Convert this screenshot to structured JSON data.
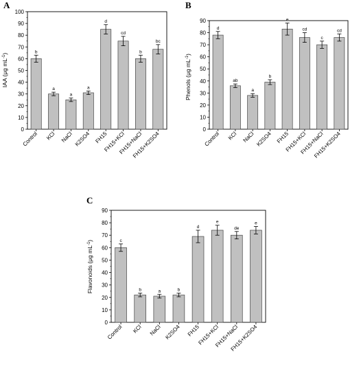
{
  "chart_data": [
    {
      "type": "bar",
      "panel": "A",
      "ylabel": "IAA (μg mL",
      "ylabel_sup": "-1",
      "ylabel_end": ")",
      "ylim": [
        0,
        100
      ],
      "yticks": [
        0,
        10,
        20,
        30,
        40,
        50,
        60,
        70,
        80,
        90,
        100
      ],
      "categories": [
        "Control",
        "KCl",
        "NaCl",
        "K2SO4",
        "FH15",
        "FH15+KCl",
        "FH15+NaCl",
        "FH15+K2SO4"
      ],
      "values": [
        60,
        30,
        25,
        31,
        85,
        75,
        60,
        68
      ],
      "errors": [
        3,
        1.5,
        1.5,
        1.5,
        4,
        4,
        3,
        4
      ],
      "letters": [
        "b",
        "a",
        "a",
        "a",
        "d",
        "cd",
        "b",
        "bc"
      ],
      "bar_color": "#c0c0c0"
    },
    {
      "type": "bar",
      "panel": "B",
      "ylabel": "Phenols (μg mL",
      "ylabel_sup": "-1",
      "ylabel_end": ")",
      "ylim": [
        0,
        90
      ],
      "yticks": [
        0,
        10,
        20,
        30,
        40,
        50,
        60,
        70,
        80,
        90
      ],
      "categories": [
        "Control",
        "KCl",
        "NaCl",
        "K2SO4",
        "FH15",
        "FH15+KCl",
        "FH15+NaCl",
        "FH15+K2SO4"
      ],
      "values": [
        78,
        36,
        28,
        39,
        83,
        76,
        70,
        76
      ],
      "errors": [
        3,
        1.5,
        1.5,
        2,
        5,
        4,
        3,
        3
      ],
      "letters": [
        "d",
        "ab",
        "a",
        "b",
        "e",
        "cd",
        "c",
        "cd"
      ],
      "bar_color": "#c0c0c0"
    },
    {
      "type": "bar",
      "panel": "C",
      "ylabel": "Flavonoids (μg mL",
      "ylabel_sup": "-1",
      "ylabel_end": ")",
      "ylim": [
        0,
        90
      ],
      "yticks": [
        0,
        10,
        20,
        30,
        40,
        50,
        60,
        70,
        80,
        90
      ],
      "categories": [
        "Control",
        "KCl",
        "NaCl",
        "K2SO4",
        "FH15",
        "FH15+KCl",
        "FH15+NaCl",
        "FH15+K2SO4"
      ],
      "values": [
        60,
        22,
        21,
        22,
        69,
        74,
        70,
        74
      ],
      "errors": [
        3,
        1.5,
        1.5,
        1.5,
        5,
        4,
        3,
        3
      ],
      "letters": [
        "c",
        "b",
        "a",
        "b",
        "d",
        "e",
        "de",
        "e"
      ],
      "bar_color": "#c0c0c0"
    }
  ]
}
